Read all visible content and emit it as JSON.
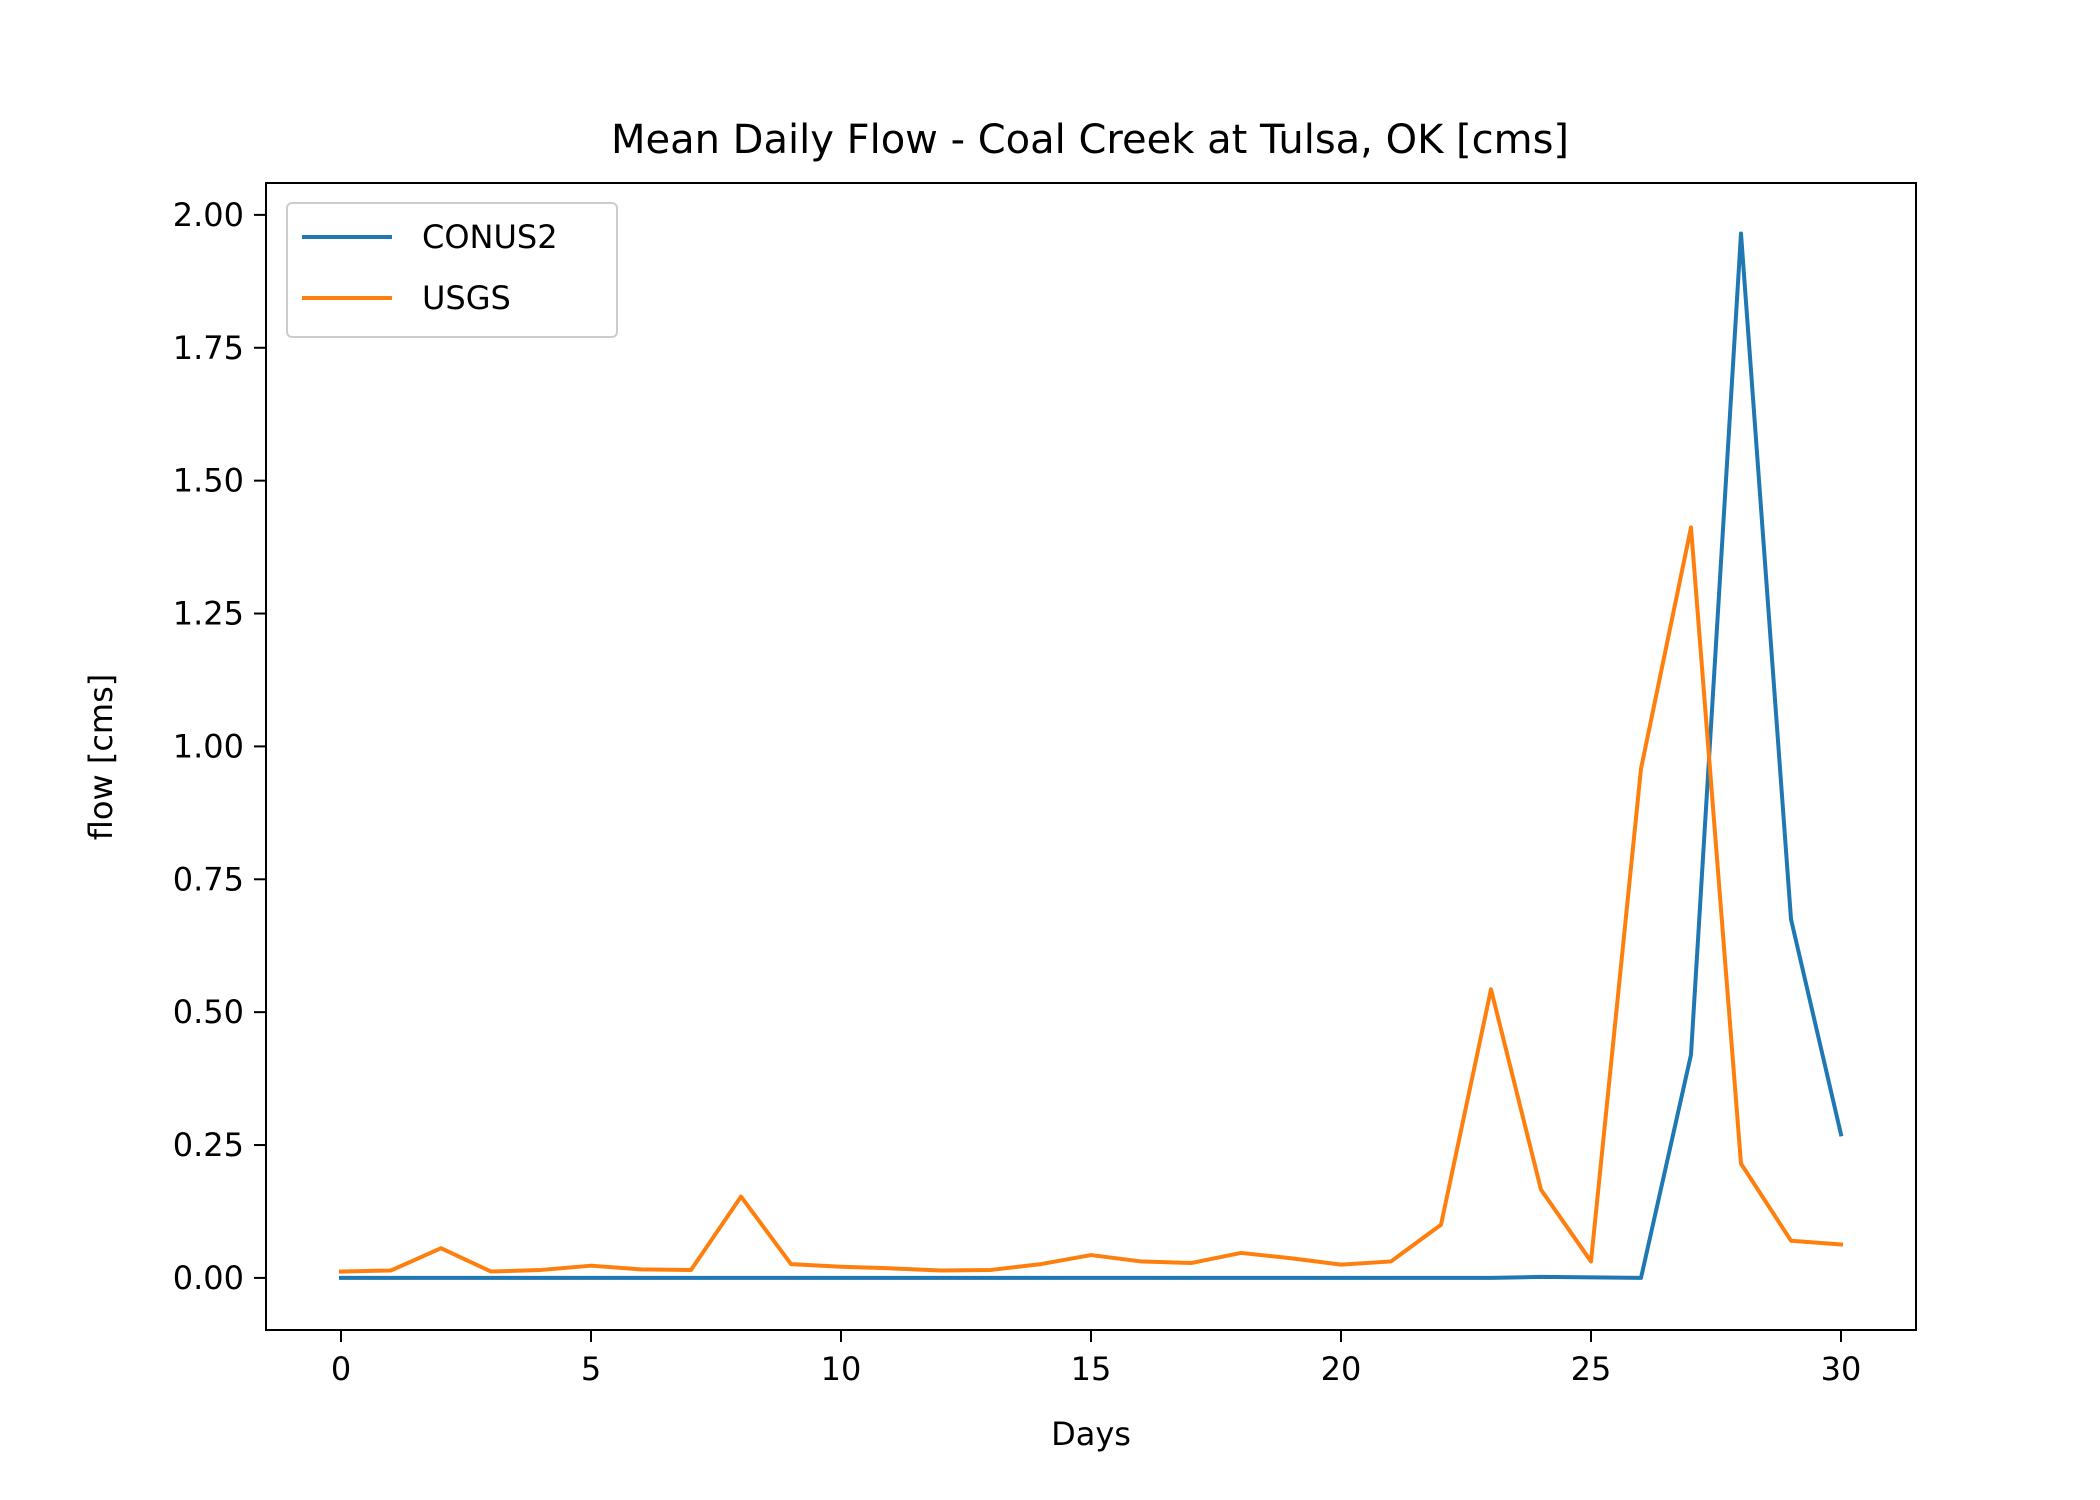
{
  "chart_data": {
    "type": "line",
    "title": "Mean Daily Flow - Coal Creek at Tulsa, OK [cms]",
    "xlabel": "Days",
    "ylabel": "flow [cms]",
    "xlim": [
      -1.5,
      31.5
    ],
    "ylim": [
      -0.098,
      2.06
    ],
    "xticks": [
      0,
      5,
      10,
      15,
      20,
      25,
      30
    ],
    "xtick_labels": [
      "0",
      "5",
      "10",
      "15",
      "20",
      "25",
      "30"
    ],
    "yticks": [
      0,
      0.25,
      0.5,
      0.75,
      1.0,
      1.25,
      1.5,
      1.75,
      2.0
    ],
    "ytick_labels": [
      "0.00",
      "0.25",
      "0.50",
      "0.75",
      "1.00",
      "1.25",
      "1.50",
      "1.75",
      "2.00"
    ],
    "grid": false,
    "legend_position": "top-left",
    "x": [
      0,
      1,
      2,
      3,
      4,
      5,
      6,
      7,
      8,
      9,
      10,
      11,
      12,
      13,
      14,
      15,
      16,
      17,
      18,
      19,
      20,
      21,
      22,
      23,
      24,
      25,
      26,
      27,
      28,
      29,
      30
    ],
    "series": [
      {
        "name": "CONUS2",
        "color": "#1f77b4",
        "values": [
          0,
          0,
          0,
          0,
          0,
          0,
          0,
          0,
          0,
          0,
          0,
          0,
          0,
          0,
          0,
          0,
          0,
          0,
          0,
          0,
          0,
          0,
          0,
          0,
          0.002,
          0.001,
          0,
          0.42,
          1.965,
          0.675,
          0.27
        ]
      },
      {
        "name": "USGS",
        "color": "#ff7f0e",
        "values": [
          0.012,
          0.014,
          0.056,
          0.012,
          0.015,
          0.023,
          0.016,
          0.015,
          0.153,
          0.026,
          0.021,
          0.018,
          0.014,
          0.015,
          0.026,
          0.043,
          0.031,
          0.028,
          0.047,
          0.037,
          0.025,
          0.031,
          0.1,
          0.543,
          0.166,
          0.031,
          0.958,
          1.412,
          0.215,
          0.07,
          0.063
        ]
      }
    ]
  }
}
